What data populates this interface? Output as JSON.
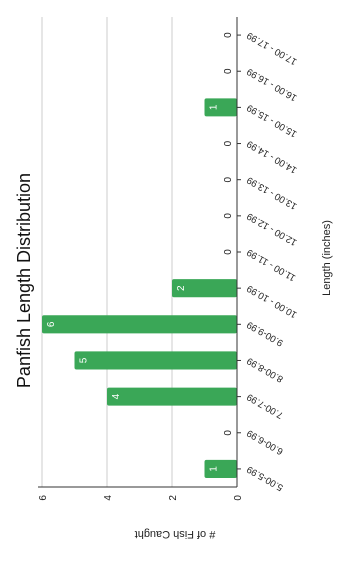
{
  "chart_data": {
    "type": "bar",
    "title": "Panfish Length Distribution",
    "xlabel": "Length (inches)",
    "ylabel": "# of Fish Caught",
    "categories": [
      "5.00-5.99",
      "6.00-6.99",
      "7.00-7.99",
      "8.00-8.99",
      "9.00-9.99",
      "10.00 - 10.99",
      "11.00 - 11.99",
      "12.00 - 12.99",
      "13.00 - 13.99",
      "14.00 - 14.99",
      "15.00 - 15.99",
      "16.00 - 16.99",
      "17.00 - 17.99"
    ],
    "values": [
      1,
      0,
      4,
      5,
      6,
      2,
      0,
      0,
      0,
      0,
      1,
      0,
      0
    ],
    "ylim": [
      0,
      6
    ],
    "yticks": [
      "0",
      "2",
      "4",
      "6"
    ],
    "grid": true,
    "bar_color": "#3aa757",
    "grid_color": "#cccccc",
    "axis_color": "#333333",
    "label_color": "#222222"
  }
}
